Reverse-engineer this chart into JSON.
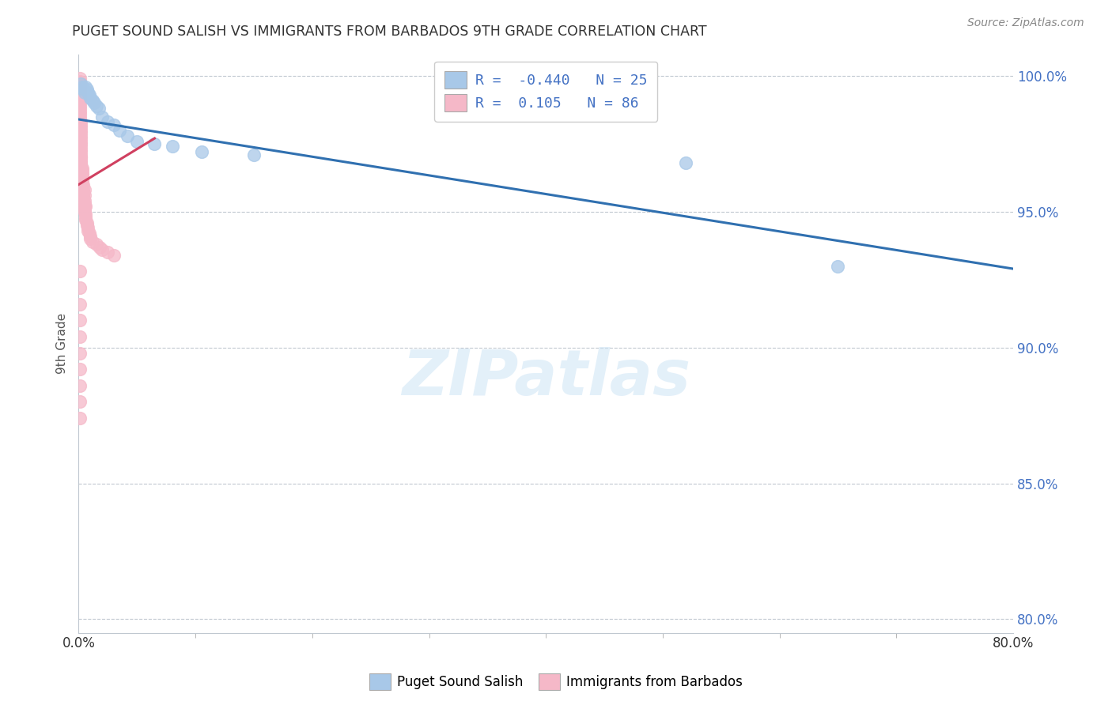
{
  "title": "PUGET SOUND SALISH VS IMMIGRANTS FROM BARBADOS 9TH GRADE CORRELATION CHART",
  "source": "Source: ZipAtlas.com",
  "ylabel": "9th Grade",
  "watermark": "ZIPatlas",
  "xmin": 0.0,
  "xmax": 0.8,
  "ymin": 0.795,
  "ymax": 1.008,
  "blue_R": -0.44,
  "blue_N": 25,
  "pink_R": 0.105,
  "pink_N": 86,
  "blue_color": "#a8c8e8",
  "pink_color": "#f5b8c8",
  "blue_line_color": "#3070b0",
  "pink_line_color": "#d04060",
  "legend_label_blue": "Puget Sound Salish",
  "legend_label_pink": "Immigrants from Barbados",
  "blue_line_x0": 0.0,
  "blue_line_y0": 0.984,
  "blue_line_x1": 0.8,
  "blue_line_y1": 0.929,
  "pink_line_x0": 0.0,
  "pink_line_y0": 0.96,
  "pink_line_x1": 0.065,
  "pink_line_y1": 0.977,
  "blue_scatter_x": [
    0.002,
    0.003,
    0.004,
    0.005,
    0.006,
    0.007,
    0.008,
    0.009,
    0.01,
    0.012,
    0.013,
    0.015,
    0.017,
    0.02,
    0.025,
    0.03,
    0.035,
    0.042,
    0.05,
    0.065,
    0.08,
    0.105,
    0.15,
    0.52,
    0.65
  ],
  "blue_scatter_y": [
    0.997,
    0.996,
    0.995,
    0.994,
    0.996,
    0.995,
    0.994,
    0.993,
    0.992,
    0.991,
    0.99,
    0.989,
    0.988,
    0.985,
    0.983,
    0.982,
    0.98,
    0.978,
    0.976,
    0.975,
    0.974,
    0.972,
    0.971,
    0.968,
    0.93
  ],
  "pink_scatter_x": [
    0.001,
    0.001,
    0.001,
    0.001,
    0.001,
    0.001,
    0.001,
    0.001,
    0.001,
    0.001,
    0.001,
    0.001,
    0.001,
    0.001,
    0.001,
    0.001,
    0.002,
    0.002,
    0.002,
    0.002,
    0.002,
    0.002,
    0.002,
    0.002,
    0.002,
    0.002,
    0.002,
    0.002,
    0.002,
    0.002,
    0.002,
    0.002,
    0.002,
    0.003,
    0.003,
    0.003,
    0.003,
    0.003,
    0.003,
    0.003,
    0.003,
    0.004,
    0.004,
    0.004,
    0.004,
    0.005,
    0.005,
    0.005,
    0.005,
    0.005,
    0.006,
    0.006,
    0.006,
    0.007,
    0.007,
    0.008,
    0.008,
    0.009,
    0.01,
    0.01,
    0.012,
    0.015,
    0.018,
    0.02,
    0.025,
    0.03,
    0.001,
    0.001,
    0.001,
    0.001,
    0.001,
    0.001,
    0.001,
    0.001,
    0.001,
    0.001,
    0.002,
    0.002,
    0.002,
    0.003,
    0.003,
    0.004,
    0.005,
    0.005,
    0.006
  ],
  "pink_scatter_y": [
    0.999,
    0.998,
    0.997,
    0.996,
    0.995,
    0.994,
    0.993,
    0.992,
    0.991,
    0.99,
    0.989,
    0.988,
    0.987,
    0.986,
    0.985,
    0.984,
    0.983,
    0.982,
    0.981,
    0.98,
    0.979,
    0.978,
    0.977,
    0.976,
    0.975,
    0.974,
    0.973,
    0.972,
    0.971,
    0.97,
    0.969,
    0.968,
    0.967,
    0.966,
    0.965,
    0.964,
    0.963,
    0.962,
    0.961,
    0.96,
    0.959,
    0.958,
    0.957,
    0.956,
    0.955,
    0.954,
    0.953,
    0.952,
    0.951,
    0.95,
    0.949,
    0.948,
    0.947,
    0.946,
    0.945,
    0.944,
    0.943,
    0.942,
    0.941,
    0.94,
    0.939,
    0.938,
    0.937,
    0.936,
    0.935,
    0.934,
    0.928,
    0.922,
    0.916,
    0.91,
    0.904,
    0.898,
    0.892,
    0.886,
    0.88,
    0.874,
    0.97,
    0.968,
    0.966,
    0.964,
    0.962,
    0.96,
    0.958,
    0.956,
    0.952
  ],
  "ytick_vals": [
    0.8,
    0.85,
    0.9,
    0.95,
    1.0
  ],
  "ytick_labels": [
    "80.0%",
    "85.0%",
    "90.0%",
    "95.0%",
    "100.0%"
  ],
  "xtick_vals": [
    0.0,
    0.8
  ],
  "xtick_labels": [
    "0.0%",
    "80.0%"
  ]
}
